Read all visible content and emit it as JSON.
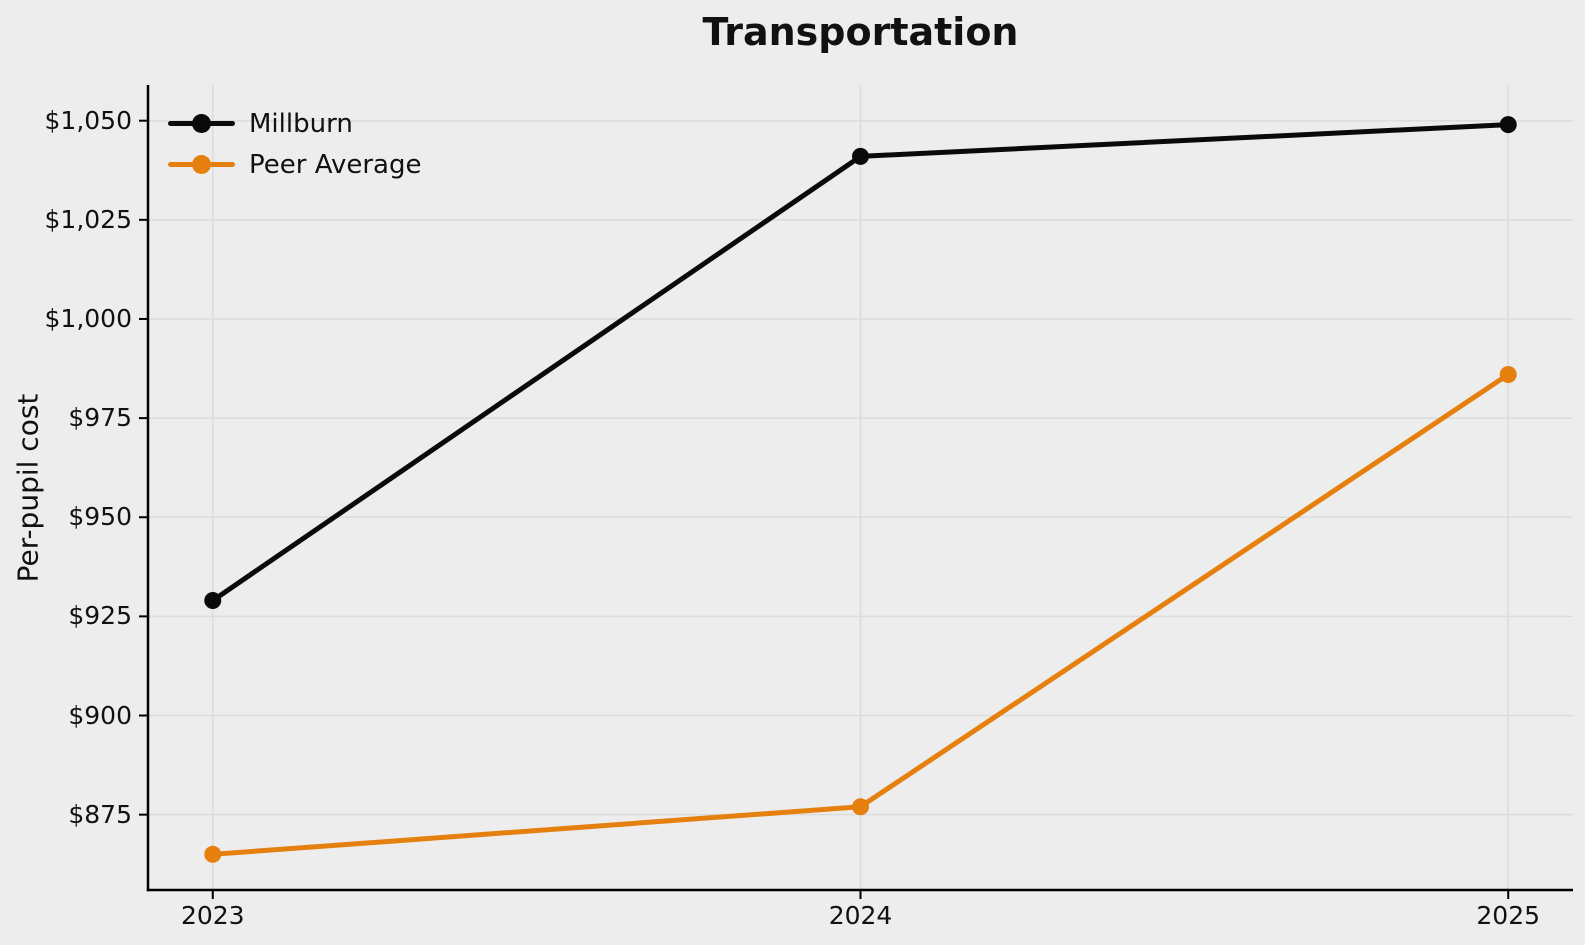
{
  "chart_data": {
    "type": "line",
    "title": "Transportation",
    "ylabel": "Per-pupil cost",
    "xlabel": "",
    "categories": [
      "2023",
      "2024",
      "2025"
    ],
    "x": [
      2023,
      2024,
      2025
    ],
    "series": [
      {
        "name": "Millburn",
        "color": "#0a0a0a",
        "values": [
          929,
          1041,
          1049
        ]
      },
      {
        "name": "Peer Average",
        "color": "#e5800e",
        "values": [
          865,
          877,
          986
        ]
      }
    ],
    "yticks": [
      {
        "value": 875,
        "label": "$875"
      },
      {
        "value": 900,
        "label": "$900"
      },
      {
        "value": 925,
        "label": "$925"
      },
      {
        "value": 950,
        "label": "$950"
      },
      {
        "value": 975,
        "label": "$975"
      },
      {
        "value": 1000,
        "label": "$1,000"
      },
      {
        "value": 1025,
        "label": "$1,025"
      },
      {
        "value": 1050,
        "label": "$1,050"
      }
    ],
    "xlim": [
      2022.9,
      2025.1
    ],
    "ylim": [
      856,
      1059
    ],
    "grid": true,
    "legend_position": "upper-left",
    "marker": "circle",
    "colors": {
      "background": "#ededed",
      "grid": "#dcdcdc",
      "axis": "#000000",
      "text": "#111111"
    }
  }
}
